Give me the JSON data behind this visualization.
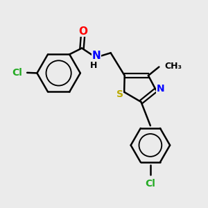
{
  "bg_color": "#ebebeb",
  "bond_color": "#000000",
  "bond_width": 1.8,
  "atom_colors": {
    "Cl": "#22aa22",
    "O": "#ff0000",
    "N": "#0000ff",
    "S": "#bbaa00",
    "C": "#000000",
    "H": "#000000"
  },
  "font_size": 10,
  "fig_size": [
    3.0,
    3.0
  ],
  "dpi": 100
}
